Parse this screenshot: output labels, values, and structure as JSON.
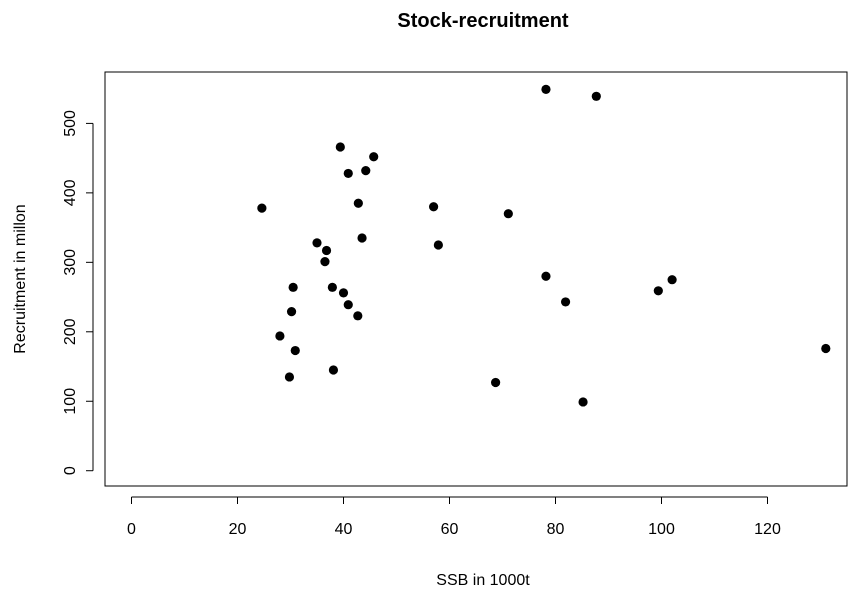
{
  "chart_data": {
    "type": "scatter",
    "title": "Stock-recruitment",
    "xlabel": "SSB in 1000t",
    "ylabel": "Recruitment in millon",
    "xlim": [
      -5,
      135
    ],
    "ylim": [
      -22,
      574
    ],
    "x_ticks": [
      0,
      20,
      40,
      60,
      80,
      100,
      120
    ],
    "y_ticks": [
      0,
      100,
      200,
      300,
      400,
      500
    ],
    "x_tick_labels": [
      "0",
      "20",
      "40",
      "60",
      "80",
      "100",
      "120"
    ],
    "y_tick_labels": [
      "0",
      "100",
      "200",
      "300",
      "400",
      "500"
    ],
    "grid": false,
    "legend": "none",
    "marker_color": "#000000",
    "points": [
      {
        "x": 24.6,
        "y": 378
      },
      {
        "x": 28.0,
        "y": 194
      },
      {
        "x": 29.8,
        "y": 135
      },
      {
        "x": 30.2,
        "y": 229
      },
      {
        "x": 30.5,
        "y": 264
      },
      {
        "x": 30.9,
        "y": 173
      },
      {
        "x": 35.0,
        "y": 328
      },
      {
        "x": 36.5,
        "y": 301
      },
      {
        "x": 36.8,
        "y": 317
      },
      {
        "x": 37.9,
        "y": 264
      },
      {
        "x": 38.1,
        "y": 145
      },
      {
        "x": 39.4,
        "y": 466
      },
      {
        "x": 40.0,
        "y": 256
      },
      {
        "x": 40.9,
        "y": 239
      },
      {
        "x": 40.9,
        "y": 428
      },
      {
        "x": 42.7,
        "y": 223
      },
      {
        "x": 42.8,
        "y": 385
      },
      {
        "x": 43.5,
        "y": 335
      },
      {
        "x": 44.2,
        "y": 432
      },
      {
        "x": 45.7,
        "y": 452
      },
      {
        "x": 57.0,
        "y": 380
      },
      {
        "x": 57.9,
        "y": 325
      },
      {
        "x": 68.7,
        "y": 127
      },
      {
        "x": 71.1,
        "y": 370
      },
      {
        "x": 78.2,
        "y": 549
      },
      {
        "x": 78.2,
        "y": 280
      },
      {
        "x": 81.9,
        "y": 243
      },
      {
        "x": 85.2,
        "y": 99
      },
      {
        "x": 87.7,
        "y": 539
      },
      {
        "x": 99.4,
        "y": 259
      },
      {
        "x": 102.0,
        "y": 275
      },
      {
        "x": 131.0,
        "y": 176
      }
    ]
  }
}
